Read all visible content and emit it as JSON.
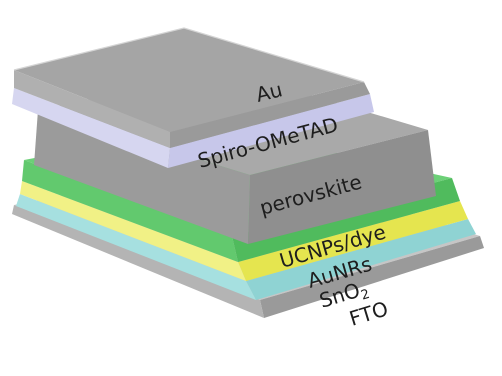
{
  "layers": [
    {
      "key": "fto",
      "label": "FTO",
      "top": "#c9c9c9",
      "side": "#a9a9a9",
      "front": "#8e8e8e"
    },
    {
      "key": "sno2",
      "label": "SnO2",
      "top": "#a9e3e3",
      "side": "#8fd6d6",
      "front": "#73c7c7"
    },
    {
      "key": "aunrs",
      "label": "AuNRs",
      "top": "#f2f28a",
      "side": "#eaea5c",
      "front": "#dada40"
    },
    {
      "key": "ucnps_dye",
      "label": "UCNPs/dye",
      "top": "#6fd17a",
      "side": "#5bc168",
      "front": "#49ad57"
    },
    {
      "key": "perovskite",
      "label": "perovskite",
      "top": "#b9b9b9",
      "side": "#9d9d9d",
      "front": "#8c8c8c"
    },
    {
      "key": "spiro",
      "label": "Spiro-OMeTAD",
      "top": "#d9d9f0",
      "side": "#c4c4e8",
      "front": "#b3b3dc"
    },
    {
      "key": "au",
      "label": "Au",
      "top": "#a6a6a6",
      "side": "#9a9a9a",
      "front": "#8f8f8f"
    }
  ],
  "labels": {
    "au": "Au",
    "spiro": "Spiro-OMeTAD",
    "perovskite": "perovskite",
    "ucnps_dye": "UCNPs/dye",
    "aunrs": "AuNRs",
    "sno2_base": "SnO",
    "sno2_sub": "2",
    "fto": "FTO"
  }
}
